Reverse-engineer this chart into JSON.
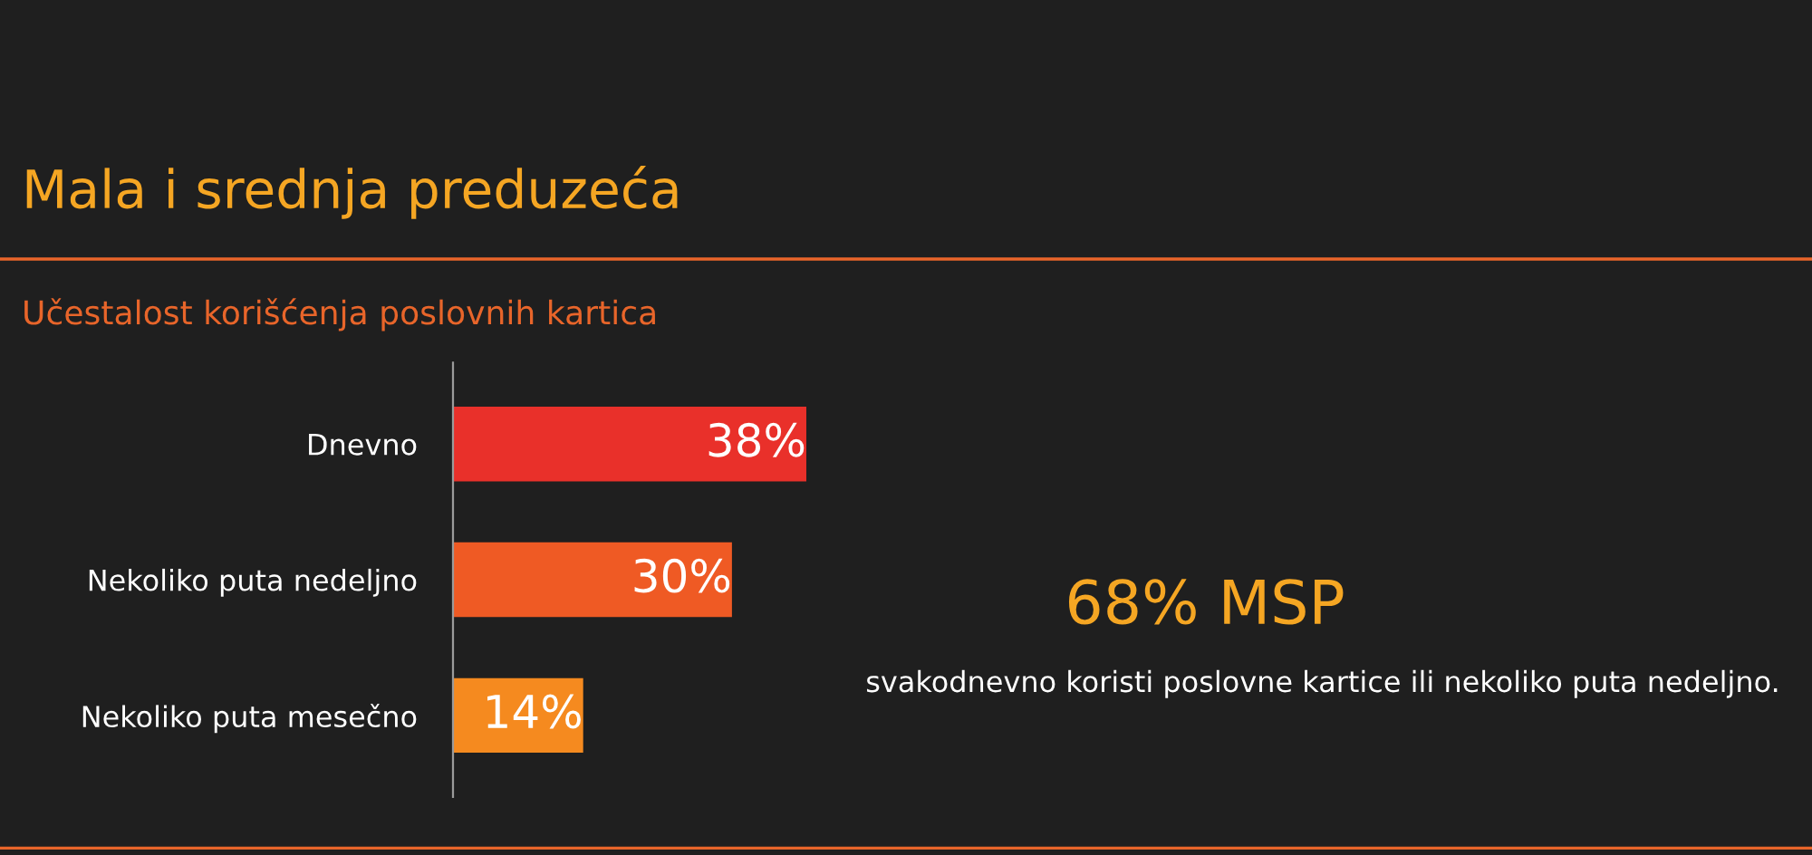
{
  "chart_data": {
    "type": "bar",
    "orientation": "horizontal",
    "title": "Mala i srednja preduzeća",
    "subtitle": "Učestalost korišćenja poslovnih kartica",
    "categories": [
      "Dnevno",
      "Nekoliko puta nedeljno",
      "Nekoliko puta mesečno"
    ],
    "values": [
      38,
      30,
      14
    ],
    "colors": [
      "#e9302a",
      "#ef5a24",
      "#f58a1f"
    ],
    "value_labels": [
      "38%",
      "30%",
      "14%"
    ],
    "tick_labels": "y",
    "grid": false,
    "legend": false,
    "annotations": [
      "68% MSP",
      "svakodnevno koristi poslovne kartice ili nekoliko puta nedeljno."
    ]
  }
}
